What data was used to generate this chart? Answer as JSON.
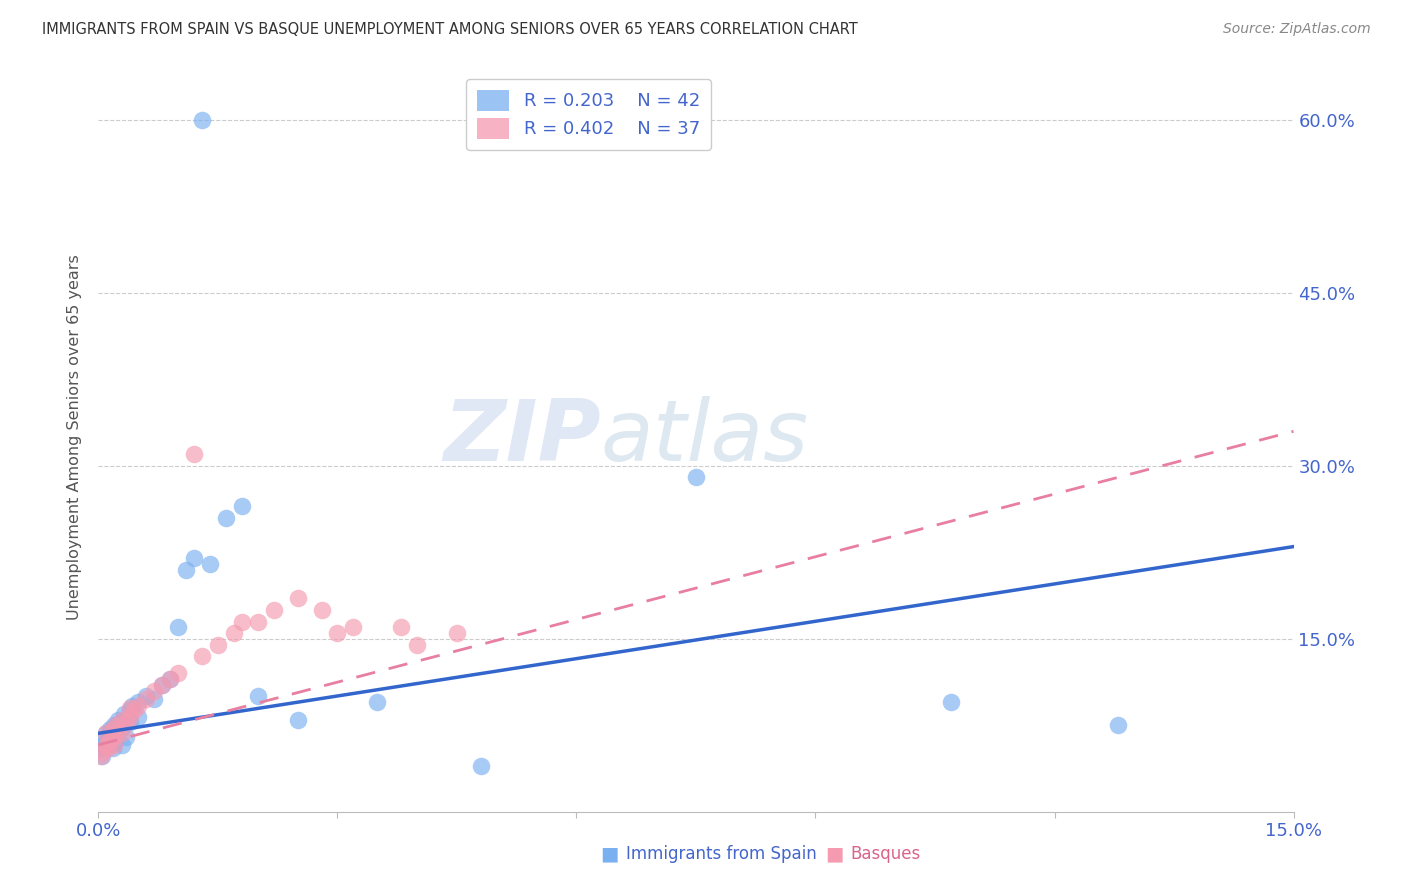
{
  "title": "IMMIGRANTS FROM SPAIN VS BASQUE UNEMPLOYMENT AMONG SENIORS OVER 65 YEARS CORRELATION CHART",
  "source": "Source: ZipAtlas.com",
  "ylabel": "Unemployment Among Seniors over 65 years",
  "xlim": [
    0.0,
    0.15
  ],
  "ylim": [
    0.0,
    0.65
  ],
  "legend_r1": "R = 0.203",
  "legend_n1": "N = 42",
  "legend_r2": "R = 0.402",
  "legend_n2": "N = 37",
  "color_blue": "#7aaff0",
  "color_pink": "#f59ab0",
  "color_blue_line": "#3366cc",
  "color_pink_line": "#e87fa0",
  "color_text_blue": "#4466cc",
  "color_text_pink": "#d9648a",
  "grid_color": "#cccccc",
  "background_color": "#ffffff",
  "blue_x": [
    0.0003,
    0.0005,
    0.0007,
    0.001,
    0.001,
    0.0012,
    0.0014,
    0.0015,
    0.0016,
    0.0018,
    0.002,
    0.002,
    0.0022,
    0.0025,
    0.0028,
    0.003,
    0.003,
    0.0032,
    0.0035,
    0.004,
    0.004,
    0.0042,
    0.005,
    0.005,
    0.006,
    0.007,
    0.008,
    0.009,
    0.01,
    0.011,
    0.012,
    0.013,
    0.014,
    0.016,
    0.018,
    0.02,
    0.025,
    0.035,
    0.048,
    0.075,
    0.107,
    0.128
  ],
  "blue_y": [
    0.055,
    0.048,
    0.06,
    0.062,
    0.068,
    0.058,
    0.072,
    0.065,
    0.07,
    0.055,
    0.06,
    0.075,
    0.068,
    0.08,
    0.072,
    0.078,
    0.058,
    0.085,
    0.065,
    0.088,
    0.078,
    0.092,
    0.095,
    0.082,
    0.1,
    0.098,
    0.11,
    0.115,
    0.16,
    0.21,
    0.22,
    0.6,
    0.215,
    0.255,
    0.265,
    0.1,
    0.08,
    0.095,
    0.04,
    0.29,
    0.095,
    0.075
  ],
  "pink_x": [
    0.0003,
    0.0005,
    0.001,
    0.001,
    0.0012,
    0.0015,
    0.0018,
    0.002,
    0.002,
    0.0022,
    0.0025,
    0.003,
    0.003,
    0.0035,
    0.004,
    0.004,
    0.0045,
    0.005,
    0.006,
    0.007,
    0.008,
    0.009,
    0.01,
    0.012,
    0.013,
    0.015,
    0.017,
    0.018,
    0.02,
    0.022,
    0.025,
    0.028,
    0.03,
    0.032,
    0.038,
    0.04,
    0.045
  ],
  "pink_y": [
    0.048,
    0.052,
    0.058,
    0.068,
    0.055,
    0.062,
    0.072,
    0.065,
    0.058,
    0.075,
    0.07,
    0.068,
    0.08,
    0.078,
    0.082,
    0.09,
    0.088,
    0.092,
    0.098,
    0.105,
    0.11,
    0.115,
    0.12,
    0.31,
    0.135,
    0.145,
    0.155,
    0.165,
    0.165,
    0.175,
    0.185,
    0.175,
    0.155,
    0.16,
    0.16,
    0.145,
    0.155
  ],
  "blue_line_x": [
    0.0,
    0.15
  ],
  "blue_line_y": [
    0.068,
    0.23
  ],
  "pink_line_x": [
    0.0,
    0.15
  ],
  "pink_line_y": [
    0.058,
    0.33
  ]
}
